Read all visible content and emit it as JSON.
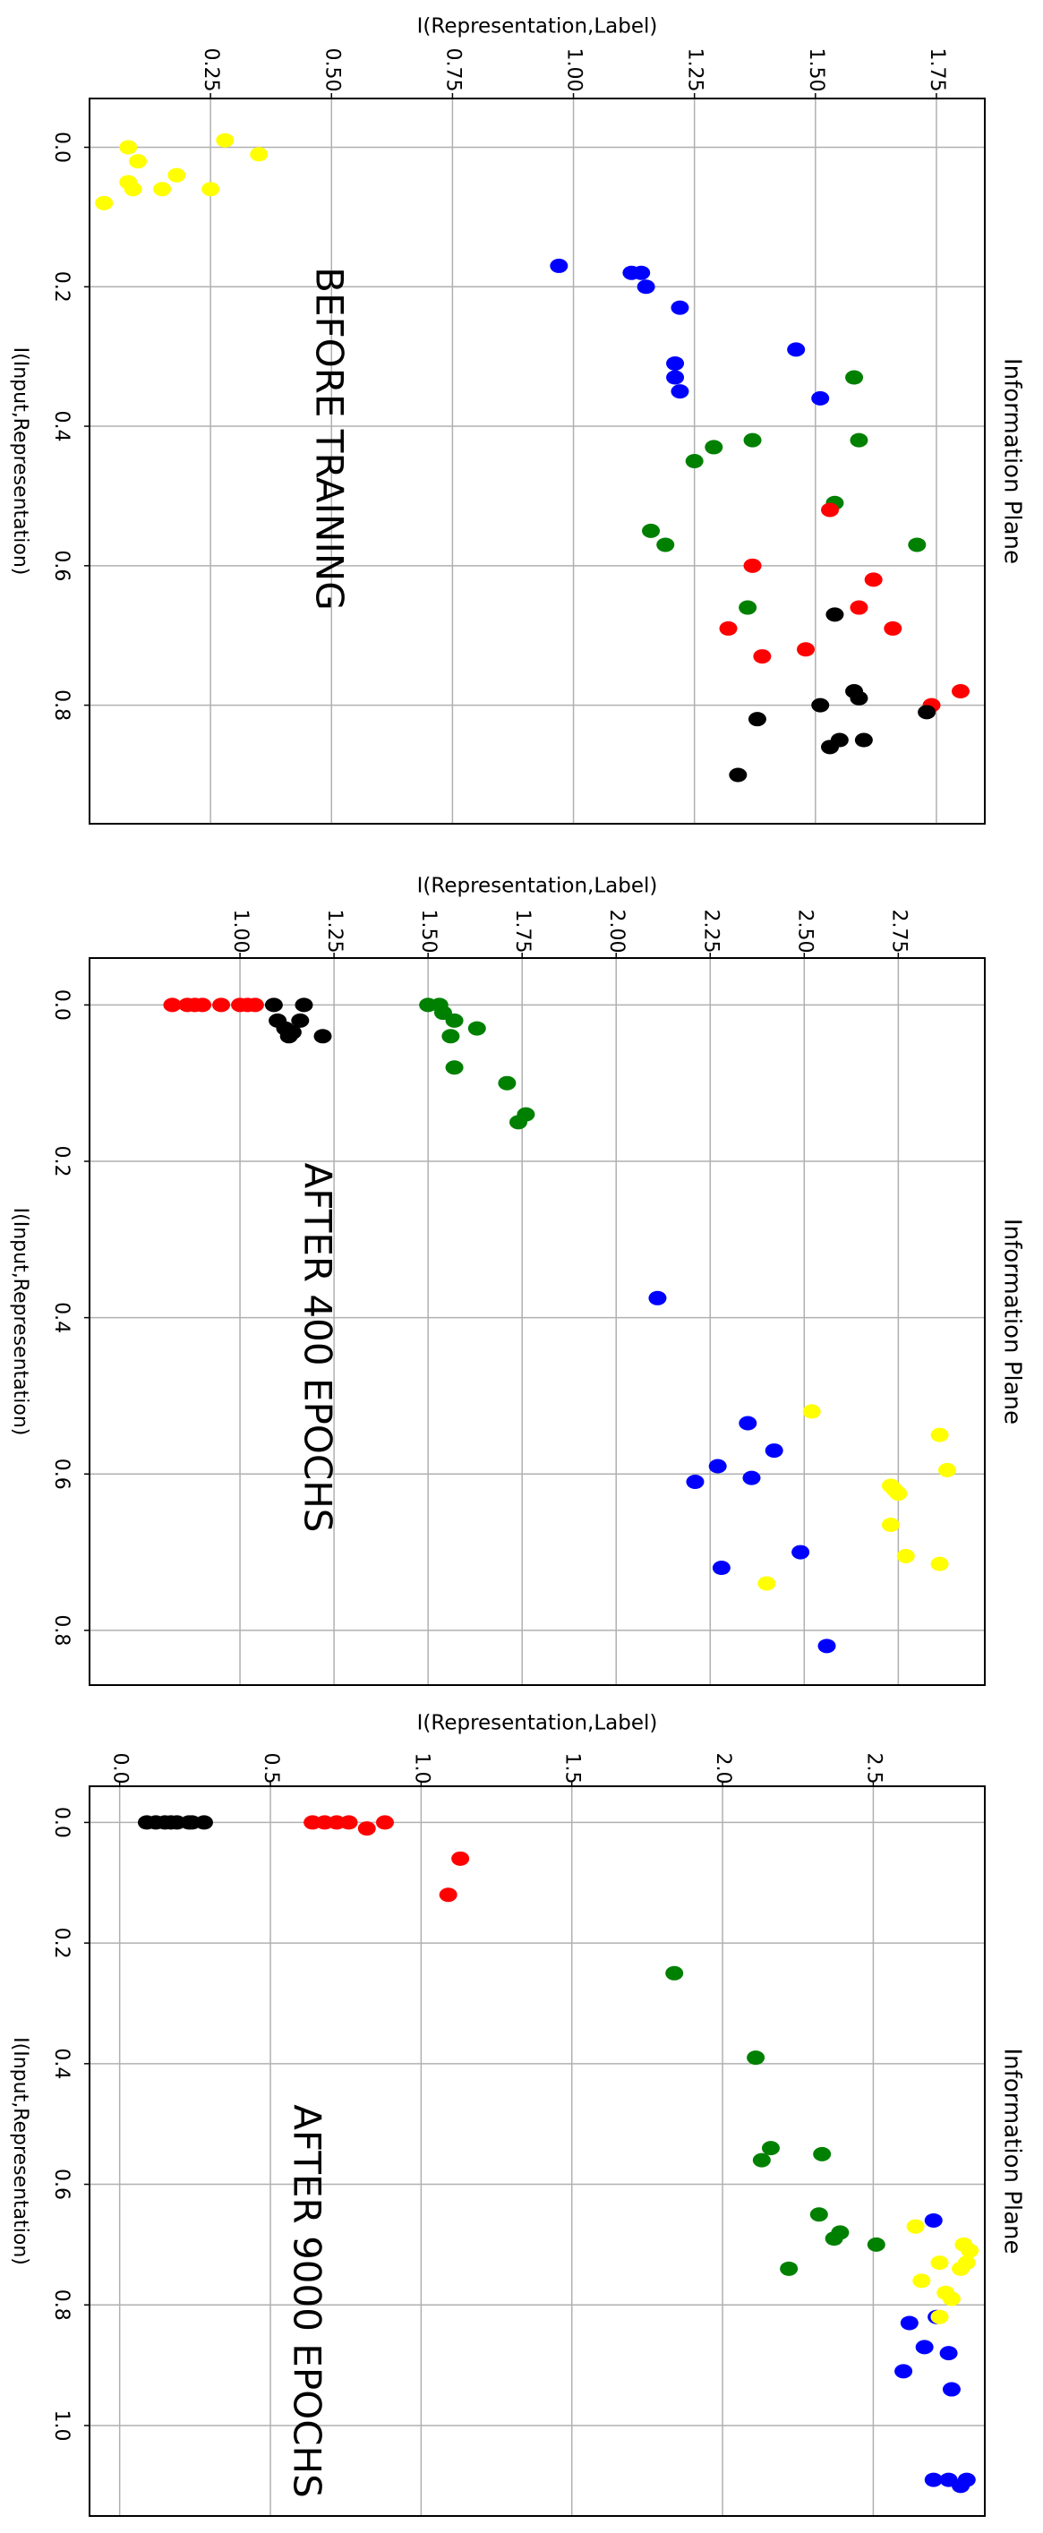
{
  "chart_data": [
    {
      "type": "scatter",
      "title": "Information Plane",
      "annotation": "BEFORE TRAINING",
      "xlabel": "I(Input,Representation)",
      "ylabel": "I(Representation,Label)",
      "xlim": [
        -0.07,
        0.97
      ],
      "ylim": [
        0.0,
        1.85
      ],
      "xticks": [
        "0.0",
        "0.2",
        "0.4",
        "0.6",
        "0.8"
      ],
      "yticks": [
        "0.25",
        "0.50",
        "0.75",
        "1.00",
        "1.25",
        "1.50",
        "1.75"
      ],
      "grid": true,
      "series": [
        {
          "color": "#ffff00",
          "points": [
            [
              0.02,
              0.1
            ],
            [
              0.0,
              0.08
            ],
            [
              -0.01,
              0.28
            ],
            [
              0.01,
              0.35
            ],
            [
              0.04,
              0.18
            ],
            [
              0.05,
              0.08
            ],
            [
              0.06,
              0.09
            ],
            [
              0.06,
              0.15
            ],
            [
              0.06,
              0.25
            ],
            [
              0.08,
              0.03
            ]
          ]
        },
        {
          "color": "#0000ff",
          "points": [
            [
              0.17,
              0.97
            ],
            [
              0.18,
              1.12
            ],
            [
              0.18,
              1.14
            ],
            [
              0.2,
              1.15
            ],
            [
              0.23,
              1.22
            ],
            [
              0.29,
              1.46
            ],
            [
              0.31,
              1.21
            ],
            [
              0.33,
              1.21
            ],
            [
              0.35,
              1.22
            ],
            [
              0.36,
              1.51
            ]
          ]
        },
        {
          "color": "#008000",
          "points": [
            [
              0.33,
              1.58
            ],
            [
              0.42,
              1.59
            ],
            [
              0.42,
              1.37
            ],
            [
              0.43,
              1.29
            ],
            [
              0.45,
              1.25
            ],
            [
              0.51,
              1.54
            ],
            [
              0.55,
              1.16
            ],
            [
              0.57,
              1.71
            ],
            [
              0.57,
              1.19
            ],
            [
              0.66,
              1.36
            ]
          ]
        },
        {
          "color": "#ff0000",
          "points": [
            [
              0.52,
              1.53
            ],
            [
              0.6,
              1.37
            ],
            [
              0.62,
              1.62
            ],
            [
              0.66,
              1.59
            ],
            [
              0.69,
              1.66
            ],
            [
              0.69,
              1.32
            ],
            [
              0.72,
              1.48
            ],
            [
              0.73,
              1.39
            ],
            [
              0.78,
              1.8
            ],
            [
              0.8,
              1.74
            ]
          ]
        },
        {
          "color": "#000000",
          "points": [
            [
              0.67,
              1.54
            ],
            [
              0.78,
              1.58
            ],
            [
              0.79,
              1.59
            ],
            [
              0.8,
              1.51
            ],
            [
              0.81,
              1.73
            ],
            [
              0.82,
              1.38
            ],
            [
              0.85,
              1.55
            ],
            [
              0.85,
              1.6
            ],
            [
              0.86,
              1.53
            ],
            [
              0.9,
              1.34
            ]
          ]
        }
      ]
    },
    {
      "type": "scatter",
      "title": "Information Plane",
      "annotation": "AFTER 400 EPOCHS",
      "xlabel": "I(Input,Representation)",
      "ylabel": "I(Representation,Label)",
      "xlim": [
        -0.06,
        0.87
      ],
      "ylim": [
        0.6,
        2.98
      ],
      "xticks": [
        "0.0",
        "0.2",
        "0.4",
        "0.6",
        "0.8"
      ],
      "yticks": [
        "1.00",
        "1.25",
        "1.50",
        "1.75",
        "2.00",
        "2.25",
        "2.50",
        "2.75"
      ],
      "grid": true,
      "series": [
        {
          "color": "#ff0000",
          "points": [
            [
              0.0,
              0.82
            ],
            [
              0.0,
              0.86
            ],
            [
              0.0,
              0.88
            ],
            [
              0.0,
              0.9
            ],
            [
              0.0,
              0.95
            ],
            [
              0.0,
              1.0
            ],
            [
              0.0,
              1.02
            ],
            [
              0.0,
              1.04
            ]
          ]
        },
        {
          "color": "#000000",
          "points": [
            [
              0.0,
              1.09
            ],
            [
              0.0,
              1.17
            ],
            [
              0.02,
              1.1
            ],
            [
              0.02,
              1.16
            ],
            [
              0.03,
              1.12
            ],
            [
              0.035,
              1.14
            ],
            [
              0.04,
              1.13
            ],
            [
              0.04,
              1.22
            ]
          ]
        },
        {
          "color": "#008000",
          "points": [
            [
              0.0,
              1.5
            ],
            [
              0.0,
              1.53
            ],
            [
              0.01,
              1.54
            ],
            [
              0.02,
              1.57
            ],
            [
              0.03,
              1.63
            ],
            [
              0.04,
              1.56
            ],
            [
              0.08,
              1.57
            ],
            [
              0.1,
              1.71
            ],
            [
              0.14,
              1.76
            ],
            [
              0.15,
              1.74
            ]
          ]
        },
        {
          "color": "#0000ff",
          "points": [
            [
              0.375,
              2.11
            ],
            [
              0.535,
              2.35
            ],
            [
              0.57,
              2.42
            ],
            [
              0.59,
              2.27
            ],
            [
              0.605,
              2.36
            ],
            [
              0.61,
              2.21
            ],
            [
              0.7,
              2.49
            ],
            [
              0.72,
              2.28
            ],
            [
              0.82,
              2.56
            ]
          ]
        },
        {
          "color": "#ffff00",
          "points": [
            [
              0.52,
              2.52
            ],
            [
              0.55,
              2.86
            ],
            [
              0.595,
              2.88
            ],
            [
              0.615,
              2.73
            ],
            [
              0.62,
              2.74
            ],
            [
              0.625,
              2.75
            ],
            [
              0.665,
              2.73
            ],
            [
              0.705,
              2.77
            ],
            [
              0.715,
              2.86
            ],
            [
              0.74,
              2.4
            ]
          ]
        }
      ]
    },
    {
      "type": "scatter",
      "title": "Information Plane",
      "annotation": "AFTER 9000 EPOCHS",
      "xlabel": "I(Input,Representation)",
      "ylabel": "I(Representation,Label)",
      "xlim": [
        -0.06,
        1.15
      ],
      "ylim": [
        -0.1,
        2.87
      ],
      "xticks": [
        "0.0",
        "0.2",
        "0.4",
        "0.6",
        "0.8",
        "1.0"
      ],
      "yticks": [
        "0.0",
        "0.5",
        "1.0",
        "1.5",
        "2.0",
        "2.5"
      ],
      "grid": true,
      "series": [
        {
          "color": "#000000",
          "points": [
            [
              0.0,
              0.09
            ],
            [
              0.0,
              0.12
            ],
            [
              0.0,
              0.15
            ],
            [
              0.0,
              0.17
            ],
            [
              0.0,
              0.19
            ],
            [
              0.0,
              0.23
            ],
            [
              0.0,
              0.28
            ],
            [
              0.0,
              0.24
            ]
          ]
        },
        {
          "color": "#ff0000",
          "points": [
            [
              0.0,
              0.64
            ],
            [
              0.0,
              0.68
            ],
            [
              0.0,
              0.72
            ],
            [
              0.0,
              0.76
            ],
            [
              0.01,
              0.82
            ],
            [
              0.0,
              0.88
            ],
            [
              0.06,
              1.13
            ],
            [
              0.12,
              1.09
            ]
          ]
        },
        {
          "color": "#008000",
          "points": [
            [
              0.25,
              1.84
            ],
            [
              0.39,
              2.11
            ],
            [
              0.54,
              2.16
            ],
            [
              0.55,
              2.33
            ],
            [
              0.56,
              2.13
            ],
            [
              0.65,
              2.32
            ],
            [
              0.68,
              2.39
            ],
            [
              0.69,
              2.37
            ],
            [
              0.7,
              2.51
            ],
            [
              0.74,
              2.22
            ]
          ]
        },
        {
          "color": "#0000ff",
          "points": [
            [
              0.66,
              2.7
            ],
            [
              0.82,
              2.71
            ],
            [
              0.83,
              2.62
            ],
            [
              0.87,
              2.67
            ],
            [
              0.88,
              2.75
            ],
            [
              0.91,
              2.6
            ],
            [
              0.94,
              2.76
            ],
            [
              1.09,
              2.7
            ],
            [
              1.09,
              2.75
            ],
            [
              1.1,
              2.79
            ],
            [
              1.09,
              2.81
            ]
          ]
        },
        {
          "color": "#ffff00",
          "points": [
            [
              0.67,
              2.64
            ],
            [
              0.7,
              2.8
            ],
            [
              0.71,
              2.82
            ],
            [
              0.73,
              2.72
            ],
            [
              0.73,
              2.81
            ],
            [
              0.74,
              2.79
            ],
            [
              0.76,
              2.66
            ],
            [
              0.78,
              2.74
            ],
            [
              0.79,
              2.76
            ],
            [
              0.82,
              2.72
            ]
          ]
        }
      ]
    }
  ]
}
